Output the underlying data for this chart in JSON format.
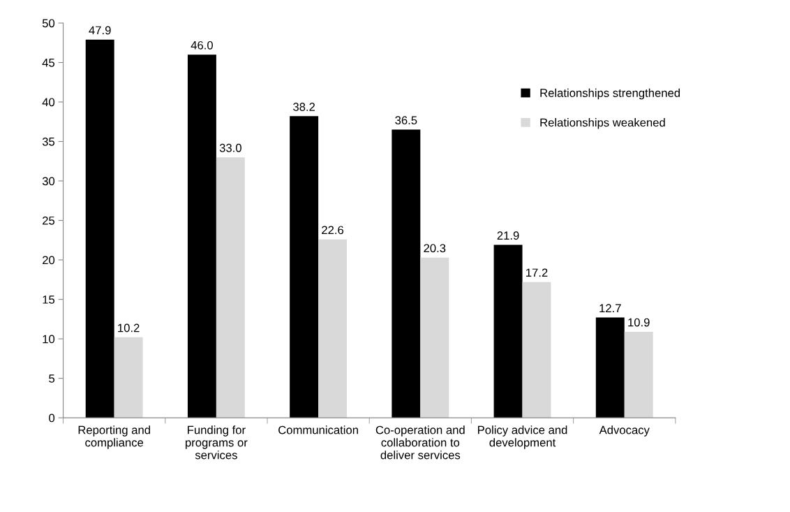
{
  "chart_data": {
    "type": "bar",
    "categories": [
      "Reporting and\ncompliance",
      "Funding for\nprograms or\nservices",
      "Communication",
      "Co-operation and\ncollaboration to\ndeliver services",
      "Policy advice and\ndevelopment",
      "Advocacy"
    ],
    "series": [
      {
        "name": "Relationships strengthened",
        "color": "#000000",
        "values": [
          47.9,
          46.0,
          38.2,
          36.5,
          21.9,
          12.7
        ],
        "value_labels": [
          "47.9",
          "46.0",
          "38.2",
          "36.5",
          "21.9",
          "12.7"
        ]
      },
      {
        "name": "Relationships weakened",
        "color": "#d9d9d9",
        "values": [
          10.2,
          33.0,
          22.6,
          20.3,
          17.2,
          10.9
        ],
        "value_labels": [
          "10.2",
          "33.0",
          "22.6",
          "20.3",
          "17.2",
          "10.9"
        ]
      }
    ],
    "ylim": [
      0,
      50
    ],
    "yticks": [
      0,
      5,
      10,
      15,
      20,
      25,
      30,
      35,
      40,
      45,
      50
    ],
    "grid": false,
    "legend": "top right"
  }
}
